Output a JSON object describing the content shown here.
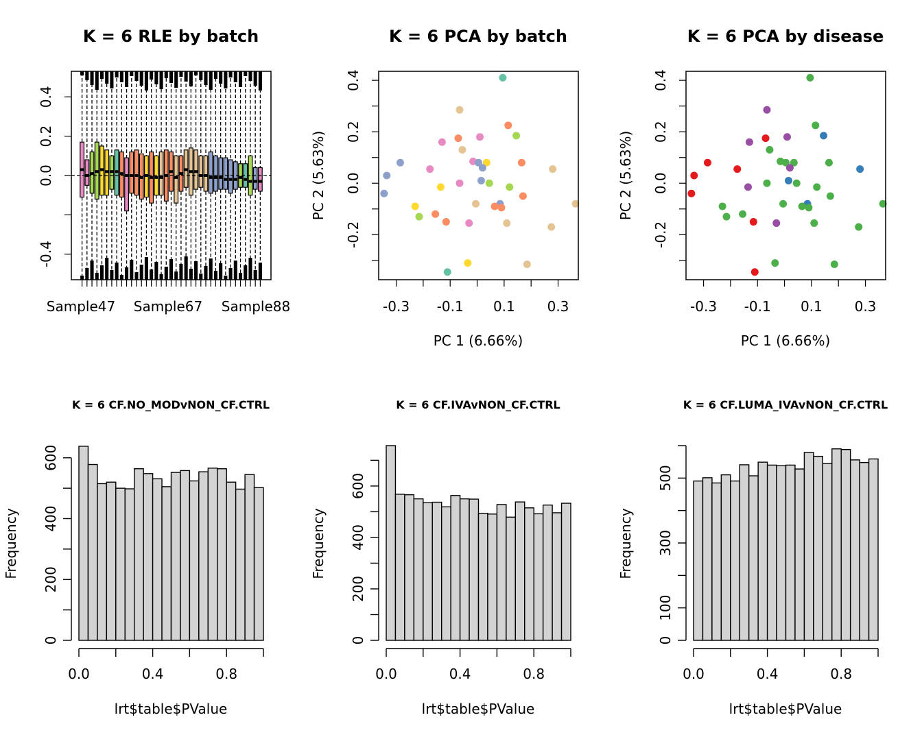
{
  "chart_data": [
    {
      "type": "boxplot",
      "title": "K = 6 RLE by batch",
      "xlabel": "",
      "ylabel": "",
      "x_tick_labels": [
        "Sample47",
        "Sample67",
        "Sample88"
      ],
      "y_ticks": [
        -0.4,
        0.0,
        0.2,
        0.4
      ],
      "ylim": [
        -0.53,
        0.53
      ],
      "reference_line": 0.0,
      "palette": "Set2",
      "boxes": [
        {
          "color": "#e78ac3",
          "q1": -0.11,
          "median": 0.03,
          "q3": 0.17
        },
        {
          "color": "#e78ac3",
          "q1": -0.05,
          "median": 0.0,
          "q3": 0.08
        },
        {
          "color": "#a6d854",
          "q1": -0.09,
          "median": 0.01,
          "q3": 0.12
        },
        {
          "color": "#a6d854",
          "q1": -0.12,
          "median": 0.02,
          "q3": 0.17
        },
        {
          "color": "#ffd92f",
          "q1": -0.1,
          "median": 0.03,
          "q3": 0.15
        },
        {
          "color": "#ffd92f",
          "q1": -0.1,
          "median": 0.02,
          "q3": 0.13
        },
        {
          "color": "#a6d854",
          "q1": -0.07,
          "median": 0.02,
          "q3": 0.1
        },
        {
          "color": "#66c2a5",
          "q1": -0.1,
          "median": 0.02,
          "q3": 0.13
        },
        {
          "color": "#fc8d62",
          "q1": -0.11,
          "median": 0.01,
          "q3": 0.12
        },
        {
          "color": "#e78ac3",
          "q1": -0.18,
          "median": 0.0,
          "q3": 0.09
        },
        {
          "color": "#fc8d62",
          "q1": -0.09,
          "median": 0.0,
          "q3": 0.12
        },
        {
          "color": "#fc8d62",
          "q1": -0.1,
          "median": 0.0,
          "q3": 0.13
        },
        {
          "color": "#fc8d62",
          "q1": -0.12,
          "median": -0.01,
          "q3": 0.11
        },
        {
          "color": "#ffd92f",
          "q1": -0.11,
          "median": 0.0,
          "q3": 0.1
        },
        {
          "color": "#fc8d62",
          "q1": -0.14,
          "median": -0.01,
          "q3": 0.12
        },
        {
          "color": "#ffd92f",
          "q1": -0.1,
          "median": -0.01,
          "q3": 0.1
        },
        {
          "color": "#e5c494",
          "q1": -0.1,
          "median": -0.01,
          "q3": 0.12
        },
        {
          "color": "#fc8d62",
          "q1": -0.13,
          "median": 0.0,
          "q3": 0.13
        },
        {
          "color": "#fc8d62",
          "q1": -0.08,
          "median": 0.02,
          "q3": 0.12
        },
        {
          "color": "#e5c494",
          "q1": -0.14,
          "median": -0.01,
          "q3": 0.1
        },
        {
          "color": "#fc8d62",
          "q1": -0.08,
          "median": 0.01,
          "q3": 0.1
        },
        {
          "color": "#e5c494",
          "q1": -0.06,
          "median": 0.03,
          "q3": 0.13
        },
        {
          "color": "#e5c494",
          "q1": -0.1,
          "median": 0.02,
          "q3": 0.14
        },
        {
          "color": "#e5c494",
          "q1": -0.07,
          "median": 0.02,
          "q3": 0.13
        },
        {
          "color": "#e5c494",
          "q1": -0.06,
          "median": 0.0,
          "q3": 0.1
        },
        {
          "color": "#e5c494",
          "q1": -0.08,
          "median": 0.0,
          "q3": 0.1
        },
        {
          "color": "#8da0cb",
          "q1": -0.09,
          "median": -0.01,
          "q3": 0.12
        },
        {
          "color": "#8da0cb",
          "q1": -0.08,
          "median": -0.01,
          "q3": 0.1
        },
        {
          "color": "#8da0cb",
          "q1": -0.07,
          "median": -0.01,
          "q3": 0.09
        },
        {
          "color": "#8da0cb",
          "q1": -0.07,
          "median": -0.02,
          "q3": 0.09
        },
        {
          "color": "#8da0cb",
          "q1": -0.09,
          "median": -0.02,
          "q3": 0.08
        },
        {
          "color": "#8da0cb",
          "q1": -0.07,
          "median": -0.02,
          "q3": 0.07
        },
        {
          "color": "#a6d854",
          "q1": -0.06,
          "median": -0.01,
          "q3": 0.06
        },
        {
          "color": "#66c2a5",
          "q1": -0.06,
          "median": -0.02,
          "q3": 0.06
        },
        {
          "color": "#a6d854",
          "q1": -0.1,
          "median": -0.03,
          "q3": 0.1
        },
        {
          "color": "#8da0cb",
          "q1": -0.07,
          "median": -0.03,
          "q3": 0.04
        },
        {
          "color": "#e78ac3",
          "q1": -0.08,
          "median": -0.03,
          "q3": 0.04
        }
      ]
    },
    {
      "type": "scatter",
      "title": "K = 6 PCA by batch",
      "xlabel": "PC 1 (6.66%)",
      "ylabel": "PC 2 (5.63%)",
      "x_ticks": [
        -0.3,
        -0.1,
        0.1,
        0.3
      ],
      "y_ticks": [
        -0.2,
        0.0,
        0.2,
        0.4
      ],
      "xlim": [
        -0.365,
        0.375
      ],
      "ylim": [
        -0.375,
        0.435
      ],
      "points": [
        {
          "x": 0.095,
          "y": 0.41,
          "color": "#66c2a5"
        },
        {
          "x": -0.065,
          "y": 0.285,
          "color": "#e5c494"
        },
        {
          "x": 0.115,
          "y": 0.225,
          "color": "#fc8d62"
        },
        {
          "x": 0.145,
          "y": 0.185,
          "color": "#a6d854"
        },
        {
          "x": -0.07,
          "y": 0.175,
          "color": "#fc8d62"
        },
        {
          "x": 0.01,
          "y": 0.18,
          "color": "#e78ac3"
        },
        {
          "x": -0.13,
          "y": 0.16,
          "color": "#e78ac3"
        },
        {
          "x": -0.055,
          "y": 0.13,
          "color": "#e5c494"
        },
        {
          "x": -0.285,
          "y": 0.08,
          "color": "#8da0cb"
        },
        {
          "x": -0.015,
          "y": 0.085,
          "color": "#e78ac3"
        },
        {
          "x": 0.005,
          "y": 0.08,
          "color": "#8da0cb"
        },
        {
          "x": 0.035,
          "y": 0.08,
          "color": "#ffd92f"
        },
        {
          "x": 0.165,
          "y": 0.08,
          "color": "#fc8d62"
        },
        {
          "x": 0.02,
          "y": 0.06,
          "color": "#8da0cb"
        },
        {
          "x": -0.175,
          "y": 0.055,
          "color": "#e78ac3"
        },
        {
          "x": 0.28,
          "y": 0.055,
          "color": "#e5c494"
        },
        {
          "x": -0.335,
          "y": 0.03,
          "color": "#8da0cb"
        },
        {
          "x": 0.015,
          "y": 0.01,
          "color": "#8da0cb"
        },
        {
          "x": -0.065,
          "y": 0.0,
          "color": "#e78ac3"
        },
        {
          "x": 0.045,
          "y": 0.0,
          "color": "#a6d854"
        },
        {
          "x": -0.135,
          "y": -0.015,
          "color": "#ffd92f"
        },
        {
          "x": 0.12,
          "y": -0.015,
          "color": "#a6d854"
        },
        {
          "x": -0.345,
          "y": -0.04,
          "color": "#8da0cb"
        },
        {
          "x": 0.17,
          "y": -0.05,
          "color": "#fc8d62"
        },
        {
          "x": -0.005,
          "y": -0.08,
          "color": "#e5c494"
        },
        {
          "x": 0.085,
          "y": -0.08,
          "color": "#8da0cb"
        },
        {
          "x": 0.365,
          "y": -0.08,
          "color": "#e5c494"
        },
        {
          "x": -0.23,
          "y": -0.09,
          "color": "#ffd92f"
        },
        {
          "x": 0.065,
          "y": -0.09,
          "color": "#fc8d62"
        },
        {
          "x": 0.09,
          "y": -0.095,
          "color": "#fc8d62"
        },
        {
          "x": -0.155,
          "y": -0.12,
          "color": "#fc8d62"
        },
        {
          "x": -0.215,
          "y": -0.13,
          "color": "#a6d854"
        },
        {
          "x": -0.115,
          "y": -0.15,
          "color": "#fc8d62"
        },
        {
          "x": -0.03,
          "y": -0.155,
          "color": "#e78ac3"
        },
        {
          "x": 0.11,
          "y": -0.155,
          "color": "#e5c494"
        },
        {
          "x": 0.275,
          "y": -0.17,
          "color": "#e5c494"
        },
        {
          "x": -0.035,
          "y": -0.31,
          "color": "#ffd92f"
        },
        {
          "x": 0.185,
          "y": -0.315,
          "color": "#e5c494"
        },
        {
          "x": -0.11,
          "y": -0.345,
          "color": "#66c2a5"
        }
      ]
    },
    {
      "type": "scatter",
      "title": "K = 6 PCA by disease",
      "xlabel": "PC 1 (6.66%)",
      "ylabel": "PC 2 (5.63%)",
      "x_ticks": [
        -0.3,
        -0.1,
        0.1,
        0.3
      ],
      "y_ticks": [
        -0.2,
        0.0,
        0.2,
        0.4
      ],
      "xlim": [
        -0.365,
        0.375
      ],
      "ylim": [
        -0.375,
        0.435
      ],
      "points": [
        {
          "x": 0.095,
          "y": 0.41,
          "color": "#4daf4a"
        },
        {
          "x": -0.065,
          "y": 0.285,
          "color": "#984ea3"
        },
        {
          "x": 0.115,
          "y": 0.225,
          "color": "#4daf4a"
        },
        {
          "x": 0.145,
          "y": 0.185,
          "color": "#377eb8"
        },
        {
          "x": -0.07,
          "y": 0.175,
          "color": "#e41a1c"
        },
        {
          "x": 0.01,
          "y": 0.18,
          "color": "#984ea3"
        },
        {
          "x": -0.13,
          "y": 0.16,
          "color": "#984ea3"
        },
        {
          "x": -0.055,
          "y": 0.13,
          "color": "#4daf4a"
        },
        {
          "x": -0.285,
          "y": 0.08,
          "color": "#e41a1c"
        },
        {
          "x": -0.015,
          "y": 0.085,
          "color": "#4daf4a"
        },
        {
          "x": 0.005,
          "y": 0.08,
          "color": "#4daf4a"
        },
        {
          "x": 0.035,
          "y": 0.08,
          "color": "#4daf4a"
        },
        {
          "x": 0.165,
          "y": 0.08,
          "color": "#4daf4a"
        },
        {
          "x": 0.02,
          "y": 0.06,
          "color": "#984ea3"
        },
        {
          "x": -0.175,
          "y": 0.055,
          "color": "#e41a1c"
        },
        {
          "x": 0.28,
          "y": 0.055,
          "color": "#377eb8"
        },
        {
          "x": -0.335,
          "y": 0.03,
          "color": "#e41a1c"
        },
        {
          "x": 0.015,
          "y": 0.01,
          "color": "#377eb8"
        },
        {
          "x": -0.065,
          "y": 0.0,
          "color": "#4daf4a"
        },
        {
          "x": 0.045,
          "y": 0.0,
          "color": "#4daf4a"
        },
        {
          "x": -0.135,
          "y": -0.015,
          "color": "#984ea3"
        },
        {
          "x": 0.12,
          "y": -0.015,
          "color": "#4daf4a"
        },
        {
          "x": -0.345,
          "y": -0.04,
          "color": "#e41a1c"
        },
        {
          "x": 0.17,
          "y": -0.05,
          "color": "#4daf4a"
        },
        {
          "x": -0.005,
          "y": -0.08,
          "color": "#4daf4a"
        },
        {
          "x": 0.085,
          "y": -0.08,
          "color": "#377eb8"
        },
        {
          "x": 0.365,
          "y": -0.08,
          "color": "#4daf4a"
        },
        {
          "x": -0.23,
          "y": -0.09,
          "color": "#4daf4a"
        },
        {
          "x": 0.065,
          "y": -0.09,
          "color": "#4daf4a"
        },
        {
          "x": 0.09,
          "y": -0.095,
          "color": "#4daf4a"
        },
        {
          "x": -0.155,
          "y": -0.12,
          "color": "#4daf4a"
        },
        {
          "x": -0.215,
          "y": -0.13,
          "color": "#4daf4a"
        },
        {
          "x": -0.115,
          "y": -0.15,
          "color": "#e41a1c"
        },
        {
          "x": -0.03,
          "y": -0.155,
          "color": "#984ea3"
        },
        {
          "x": 0.11,
          "y": -0.155,
          "color": "#4daf4a"
        },
        {
          "x": 0.275,
          "y": -0.17,
          "color": "#4daf4a"
        },
        {
          "x": -0.035,
          "y": -0.31,
          "color": "#4daf4a"
        },
        {
          "x": 0.185,
          "y": -0.315,
          "color": "#4daf4a"
        },
        {
          "x": -0.11,
          "y": -0.345,
          "color": "#e41a1c"
        }
      ]
    },
    {
      "type": "bar",
      "subtype": "histogram",
      "title": "K = 6 CF.NO_MODvNON_CF.CTRL",
      "xlabel": "lrt$table$PValue",
      "ylabel": "Frequency",
      "x_ticks": [
        0.0,
        0.4,
        0.8
      ],
      "y_ticks": [
        0,
        200,
        400,
        600
      ],
      "xlim": [
        0,
        1
      ],
      "ylim": [
        0,
        640
      ],
      "bin_width": 0.05,
      "bar_color": "#d3d3d3",
      "values": [
        638,
        578,
        515,
        520,
        500,
        498,
        564,
        548,
        531,
        505,
        552,
        558,
        524,
        554,
        566,
        564,
        520,
        497,
        545,
        502
      ]
    },
    {
      "type": "bar",
      "subtype": "histogram",
      "title": "K = 6 CF.IVAvNON_CF.CTRL",
      "xlabel": "lrt$table$PValue",
      "ylabel": "Frequency",
      "x_ticks": [
        0.0,
        0.4,
        0.8
      ],
      "y_ticks": [
        0,
        200,
        400,
        600
      ],
      "xlim": [
        0,
        1
      ],
      "ylim": [
        0,
        757
      ],
      "bin_width": 0.05,
      "bar_color": "#d3d3d3",
      "values": [
        757,
        568,
        566,
        550,
        535,
        537,
        519,
        563,
        550,
        549,
        494,
        491,
        528,
        479,
        538,
        515,
        492,
        526,
        496,
        533
      ]
    },
    {
      "type": "bar",
      "subtype": "histogram",
      "title": "K = 6 CF.LUMA_IVAvNON_CF.CTRL",
      "xlabel": "lrt$table$PValue",
      "ylabel": "Frequency",
      "x_ticks": [
        0.0,
        0.4,
        0.8
      ],
      "y_ticks": [
        0,
        100,
        300,
        500
      ],
      "minor_y_ticks": [
        200,
        400,
        600
      ],
      "xlim": [
        0,
        1
      ],
      "ylim": [
        0,
        600
      ],
      "bin_width": 0.05,
      "bar_color": "#d3d3d3",
      "values": [
        491,
        501,
        485,
        510,
        491,
        541,
        507,
        549,
        540,
        538,
        540,
        528,
        579,
        567,
        545,
        590,
        588,
        556,
        548,
        559
      ]
    }
  ]
}
